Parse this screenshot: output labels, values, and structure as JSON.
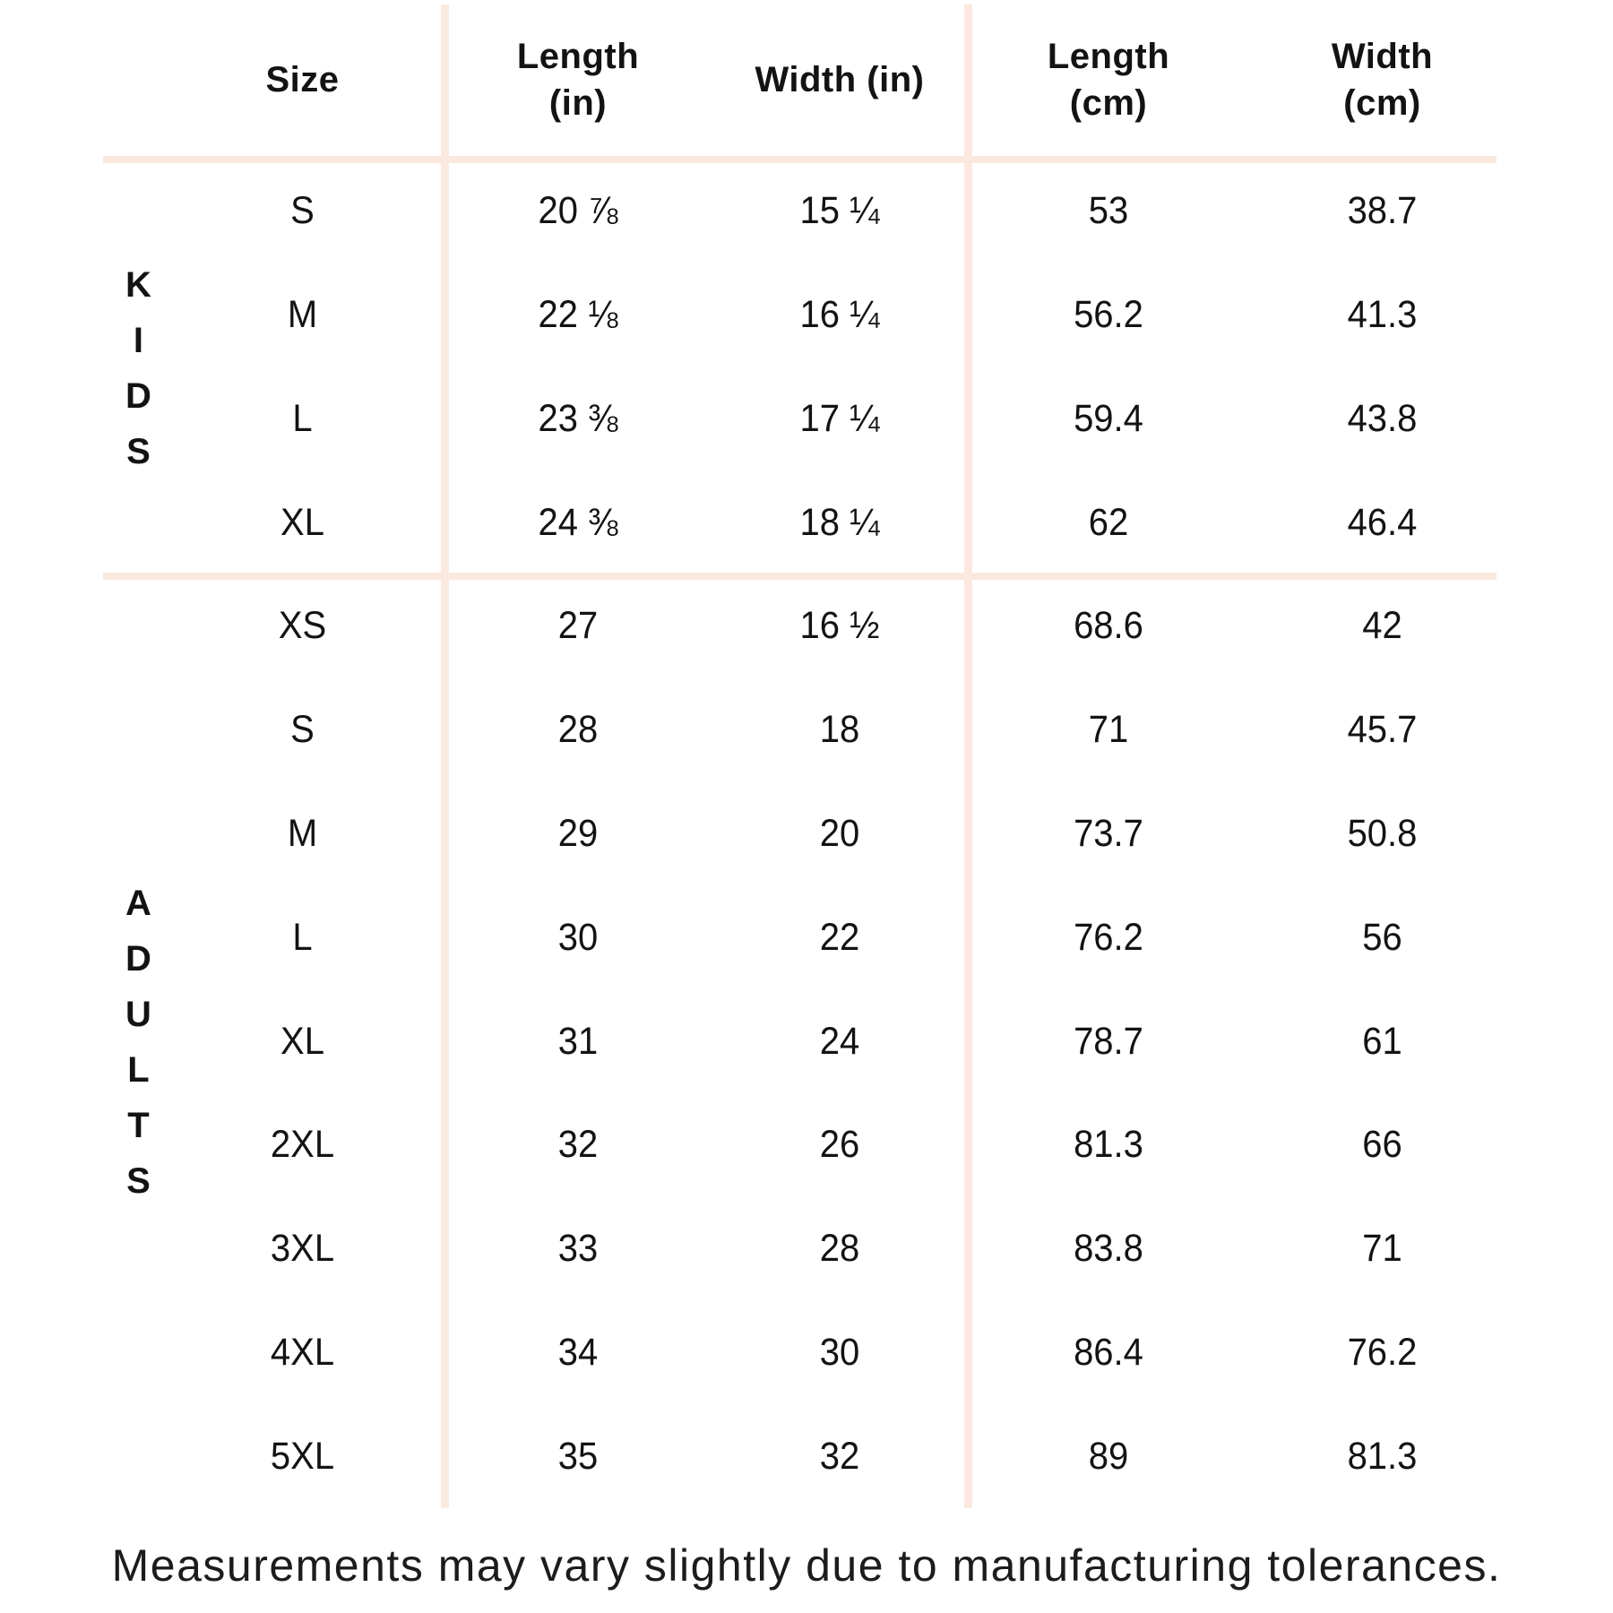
{
  "page": {
    "background_color": "#ffffff",
    "divider_color": "#fbe9e0",
    "text_color": "#131313"
  },
  "table": {
    "columns": [
      {
        "id": "size",
        "header": "Size"
      },
      {
        "id": "length_in",
        "header": "Length\n(in)"
      },
      {
        "id": "width_in",
        "header": "Width (in)"
      },
      {
        "id": "length_cm",
        "header": "Length\n(cm)"
      },
      {
        "id": "width_cm",
        "header": "Width\n(cm)"
      }
    ],
    "sections": [
      {
        "label": "KIDS",
        "rows": [
          {
            "size": "S",
            "length_in": "20 ⅞",
            "width_in": "15 ¼",
            "length_cm": "53",
            "width_cm": "38.7"
          },
          {
            "size": "M",
            "length_in": "22 ⅛",
            "width_in": "16 ¼",
            "length_cm": "56.2",
            "width_cm": "41.3"
          },
          {
            "size": "L",
            "length_in": "23 ⅜",
            "width_in": "17 ¼",
            "length_cm": "59.4",
            "width_cm": "43.8"
          },
          {
            "size": "XL",
            "length_in": "24 ⅜",
            "width_in": "18 ¼",
            "length_cm": "62",
            "width_cm": "46.4"
          }
        ]
      },
      {
        "label": "ADULTS",
        "rows": [
          {
            "size": "XS",
            "length_in": "27",
            "width_in": "16 ½",
            "length_cm": "68.6",
            "width_cm": "42"
          },
          {
            "size": "S",
            "length_in": "28",
            "width_in": "18",
            "length_cm": "71",
            "width_cm": "45.7"
          },
          {
            "size": "M",
            "length_in": "29",
            "width_in": "20",
            "length_cm": "73.7",
            "width_cm": "50.8"
          },
          {
            "size": "L",
            "length_in": "30",
            "width_in": "22",
            "length_cm": "76.2",
            "width_cm": "56"
          },
          {
            "size": "XL",
            "length_in": "31",
            "width_in": "24",
            "length_cm": "78.7",
            "width_cm": "61"
          },
          {
            "size": "2XL",
            "length_in": "32",
            "width_in": "26",
            "length_cm": "81.3",
            "width_cm": "66"
          },
          {
            "size": "3XL",
            "length_in": "33",
            "width_in": "28",
            "length_cm": "83.8",
            "width_cm": "71"
          },
          {
            "size": "4XL",
            "length_in": "34",
            "width_in": "30",
            "length_cm": "86.4",
            "width_cm": "76.2"
          },
          {
            "size": "5XL",
            "length_in": "35",
            "width_in": "32",
            "length_cm": "89",
            "width_cm": "81.3"
          }
        ]
      }
    ]
  },
  "footer": {
    "note": "Measurements may vary slightly due to manufacturing tolerances."
  }
}
